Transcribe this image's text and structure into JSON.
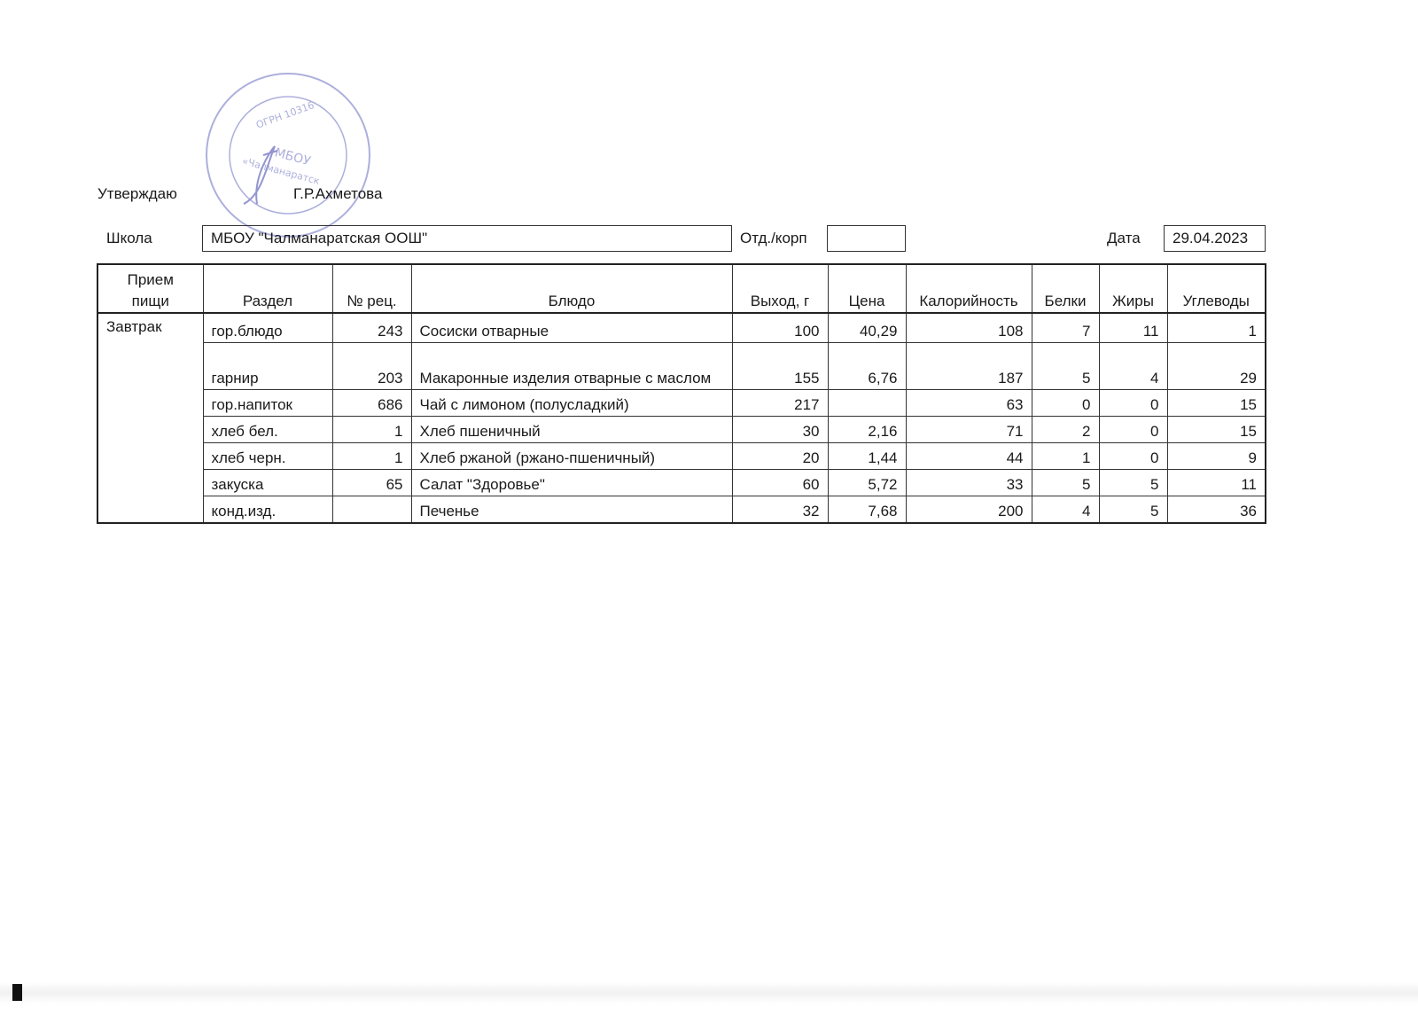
{
  "approval": {
    "label": "Утверждаю",
    "signatory": "Г.Р.Ахметова"
  },
  "stamp": {
    "center_text": "МБОУ",
    "name_text": "«Чалманаратская ООШ»",
    "ring_text": "ОГРН 10316...",
    "color": "#6a6fc0"
  },
  "header": {
    "school_label": "Школа",
    "school_value": "МБОУ \"Чалманаратская ООШ\"",
    "dept_label": "Отд./корп",
    "dept_value": "",
    "date_label": "Дата",
    "date_value": "29.04.2023"
  },
  "table": {
    "columns": [
      "Прием пищи",
      "Раздел",
      "№ рец.",
      "Блюдо",
      "Выход, г",
      "Цена",
      "Калорийность",
      "Белки",
      "Жиры",
      "Углеводы"
    ],
    "meal": "Завтрак",
    "rows": [
      {
        "section": "гор.блюдо",
        "recipe": "243",
        "dish": "Сосиски отварные",
        "yield": "100",
        "price": "40,29",
        "kcal": "108",
        "protein": "7",
        "fat": "11",
        "carbs": "1"
      },
      {
        "section": "гарнир",
        "recipe": "203",
        "dish": "Макаронные изделия отварные с маслом",
        "yield": "155",
        "price": "6,76",
        "kcal": "187",
        "protein": "5",
        "fat": "4",
        "carbs": "29"
      },
      {
        "section": "гор.напиток",
        "recipe": "686",
        "dish": "Чай с лимоном (полусладкий)",
        "yield": "217",
        "price": "",
        "kcal": "63",
        "protein": "0",
        "fat": "0",
        "carbs": "15"
      },
      {
        "section": "хлеб бел.",
        "recipe": "1",
        "dish": "Хлеб пшеничный",
        "yield": "30",
        "price": "2,16",
        "kcal": "71",
        "protein": "2",
        "fat": "0",
        "carbs": "15"
      },
      {
        "section": "хлеб черн.",
        "recipe": "1",
        "dish": "Хлеб ржаной (ржано-пшеничный)",
        "yield": "20",
        "price": "1,44",
        "kcal": "44",
        "protein": "1",
        "fat": "0",
        "carbs": "9"
      },
      {
        "section": "закуска",
        "recipe": "65",
        "dish": "Салат \"Здоровье\"",
        "yield": "60",
        "price": "5,72",
        "kcal": "33",
        "protein": "5",
        "fat": "5",
        "carbs": "11"
      },
      {
        "section": "конд.изд.",
        "recipe": "",
        "dish": "Печенье",
        "yield": "32",
        "price": "7,68",
        "kcal": "200",
        "protein": "4",
        "fat": "5",
        "carbs": "36"
      }
    ]
  }
}
